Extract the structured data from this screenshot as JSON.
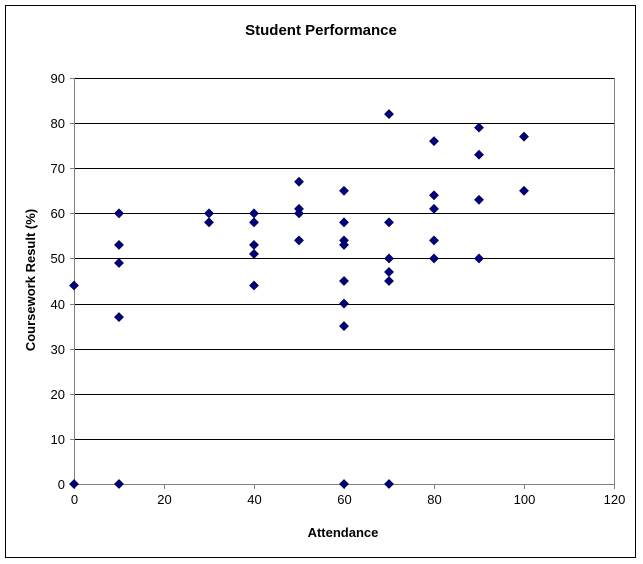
{
  "colors": {
    "marker_fill": "#000080",
    "marker_stroke": "#000040",
    "gridline": "#000000",
    "axis": "#808080",
    "plot_border": "#808080"
  },
  "chart_data": {
    "type": "scatter",
    "title": "Student Performance",
    "xlabel": "Attendance",
    "ylabel": "Coursework Result (%)",
    "xlim": [
      0,
      120
    ],
    "ylim": [
      0,
      90
    ],
    "x_ticks": [
      0,
      20,
      40,
      60,
      80,
      100,
      120
    ],
    "y_ticks": [
      0,
      10,
      20,
      30,
      40,
      50,
      60,
      70,
      80,
      90
    ],
    "grid": "horizontal major",
    "legend": "none",
    "marker": "diamond",
    "series": [
      {
        "points": [
          [
            0,
            44
          ],
          [
            0,
            0
          ],
          [
            10,
            60
          ],
          [
            10,
            53
          ],
          [
            10,
            49
          ],
          [
            10,
            37
          ],
          [
            10,
            0
          ],
          [
            30,
            60
          ],
          [
            30,
            58
          ],
          [
            40,
            60
          ],
          [
            40,
            58
          ],
          [
            40,
            53
          ],
          [
            40,
            51
          ],
          [
            40,
            44
          ],
          [
            50,
            67
          ],
          [
            50,
            61
          ],
          [
            50,
            60
          ],
          [
            50,
            54
          ],
          [
            60,
            65
          ],
          [
            60,
            58
          ],
          [
            60,
            54
          ],
          [
            60,
            53
          ],
          [
            60,
            45
          ],
          [
            60,
            40
          ],
          [
            60,
            35
          ],
          [
            60,
            0
          ],
          [
            70,
            82
          ],
          [
            70,
            58
          ],
          [
            70,
            50
          ],
          [
            70,
            47
          ],
          [
            70,
            45
          ],
          [
            70,
            0
          ],
          [
            80,
            76
          ],
          [
            80,
            64
          ],
          [
            80,
            61
          ],
          [
            80,
            54
          ],
          [
            80,
            50
          ],
          [
            90,
            79
          ],
          [
            90,
            73
          ],
          [
            90,
            63
          ],
          [
            90,
            50
          ],
          [
            100,
            77
          ],
          [
            100,
            65
          ]
        ]
      }
    ]
  }
}
